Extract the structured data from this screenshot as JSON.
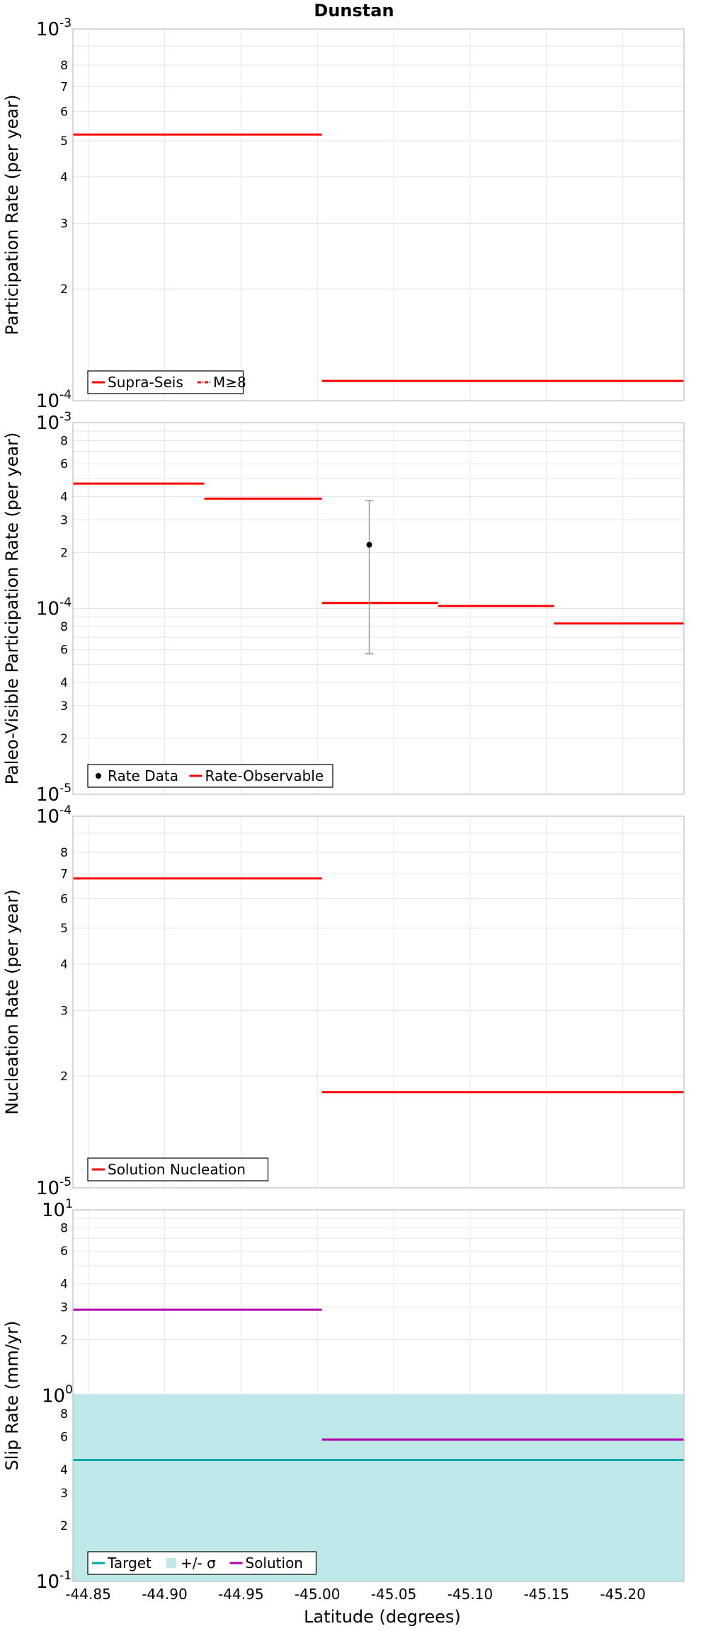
{
  "colors": {
    "red": "#ff0000",
    "purple": "#b000b0",
    "teal": "#00a8a8",
    "band": "#bfe8e8",
    "errorbar": "#999999",
    "black": "#000000"
  },
  "chart_data": {
    "type": "line",
    "title": "Dunstan",
    "xlabel": "Latitude (degrees)",
    "x_reversed": true,
    "xlim": [
      -44.84,
      -45.24
    ],
    "xticks": [
      "-44.85",
      "-44.90",
      "-44.95",
      "-45.00",
      "-45.05",
      "-45.10",
      "-45.15",
      "-45.20"
    ],
    "xtick_values": [
      -44.85,
      -44.9,
      -44.95,
      -45.0,
      -45.05,
      -45.1,
      -45.15,
      -45.2
    ],
    "panels": [
      {
        "ylabel": "Participation Rate (per year)",
        "yscale": "log",
        "ylim": [
          0.0001,
          0.001
        ],
        "y_major_ticks": [
          {
            "base": "10",
            "exp": "-4"
          },
          {
            "base": "10",
            "exp": "-3"
          }
        ],
        "y_minor_ticks": [
          "2",
          "3",
          "4",
          "5",
          "6",
          "7",
          "8"
        ],
        "legend": [
          {
            "label": "Supra-Seis",
            "style": "solid-red"
          },
          {
            "label": "M≥8",
            "style": "dashdot-red"
          }
        ],
        "series": [
          {
            "name": "Supra-Seis",
            "color": "red",
            "segments": [
              {
                "x": [
                  -44.84,
                  -44.926
                ],
                "y": 0.00052
              },
              {
                "x": [
                  -44.926,
                  -45.003
                ],
                "y": 0.00052
              },
              {
                "x": [
                  -45.003,
                  -45.079
                ],
                "y": 0.000113
              },
              {
                "x": [
                  -45.079,
                  -45.155
                ],
                "y": 0.000113
              },
              {
                "x": [
                  -45.155,
                  -45.24
                ],
                "y": 0.000113
              }
            ]
          }
        ]
      },
      {
        "ylabel": "Paleo-Visible Participation Rate (per year)",
        "yscale": "log",
        "ylim": [
          1e-05,
          0.001
        ],
        "y_major_ticks": [
          {
            "base": "10",
            "exp": "-5"
          },
          {
            "base": "10",
            "exp": "-4"
          },
          {
            "base": "10",
            "exp": "-3"
          }
        ],
        "y_minor_ticks": [
          "2",
          "3",
          "4",
          "6",
          "8"
        ],
        "legend": [
          {
            "label": "Rate Data",
            "style": "dot-black"
          },
          {
            "label": "Rate-Observable",
            "style": "solid-red"
          }
        ],
        "series": [
          {
            "name": "Rate-Observable",
            "color": "red",
            "segments": [
              {
                "x": [
                  -44.84,
                  -44.926
                ],
                "y": 0.00047
              },
              {
                "x": [
                  -44.926,
                  -45.003
                ],
                "y": 0.00039
              },
              {
                "x": [
                  -45.003,
                  -45.079
                ],
                "y": 0.000107
              },
              {
                "x": [
                  -45.079,
                  -45.155
                ],
                "y": 0.000103
              },
              {
                "x": [
                  -45.155,
                  -45.24
                ],
                "y": 8.3e-05
              }
            ]
          }
        ],
        "points": [
          {
            "name": "Rate Data",
            "x": -45.034,
            "y": 0.00022,
            "ylow": 5.7e-05,
            "yhigh": 0.00038
          }
        ]
      },
      {
        "ylabel": "Nucleation Rate (per year)",
        "yscale": "log",
        "ylim": [
          1e-05,
          0.0001
        ],
        "y_major_ticks": [
          {
            "base": "10",
            "exp": "-5"
          },
          {
            "base": "10",
            "exp": "-4"
          }
        ],
        "y_minor_ticks": [
          "2",
          "3",
          "4",
          "5",
          "6",
          "7",
          "8"
        ],
        "legend": [
          {
            "label": "Solution Nucleation",
            "style": "solid-red"
          }
        ],
        "series": [
          {
            "name": "Solution Nucleation",
            "color": "red",
            "segments": [
              {
                "x": [
                  -44.84,
                  -44.926
                ],
                "y": 6.8e-05
              },
              {
                "x": [
                  -44.926,
                  -45.003
                ],
                "y": 6.8e-05
              },
              {
                "x": [
                  -45.003,
                  -45.079
                ],
                "y": 1.81e-05
              },
              {
                "x": [
                  -45.079,
                  -45.155
                ],
                "y": 1.81e-05
              },
              {
                "x": [
                  -45.155,
                  -45.24
                ],
                "y": 1.81e-05
              }
            ]
          }
        ]
      },
      {
        "ylabel": "Slip Rate (mm/yr)",
        "yscale": "log",
        "ylim": [
          0.1,
          10
        ],
        "y_major_ticks": [
          {
            "base": "10",
            "exp": "-1"
          },
          {
            "base": "10",
            "exp": "0"
          },
          {
            "base": "10",
            "exp": "1"
          }
        ],
        "y_minor_ticks": [
          "2",
          "3",
          "4",
          "6",
          "8"
        ],
        "legend": [
          {
            "label": "Target",
            "style": "solid-teal"
          },
          {
            "label": "+/- σ",
            "style": "band"
          },
          {
            "label": "Solution",
            "style": "solid-purple"
          }
        ],
        "band": {
          "name": "+/- σ",
          "ylow": 0.1,
          "yhigh": 1.02
        },
        "series": [
          {
            "name": "Target",
            "color": "teal",
            "segments": [
              {
                "x": [
                  -44.84,
                  -45.24
                ],
                "y": 0.45
              }
            ]
          },
          {
            "name": "Solution",
            "color": "purple",
            "segments": [
              {
                "x": [
                  -44.84,
                  -45.003
                ],
                "y": 2.9
              },
              {
                "x": [
                  -45.003,
                  -45.24
                ],
                "y": 0.58
              }
            ]
          }
        ]
      }
    ]
  }
}
